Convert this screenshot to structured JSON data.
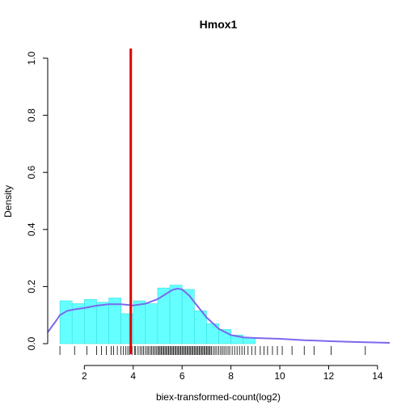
{
  "chart_data": {
    "type": "histogram",
    "title": "Hmox1",
    "xlabel": "biex-transformed-count(log2)",
    "ylabel": "Density",
    "xlim": [
      0.5,
      14.5
    ],
    "ylim": [
      0,
      1.0
    ],
    "x_ticks": [
      "2",
      "4",
      "6",
      "8",
      "10",
      "12",
      "14"
    ],
    "y_ticks": [
      "0.0",
      "0.2",
      "0.4",
      "0.6",
      "0.8",
      "1.0"
    ],
    "bin_width": 0.5,
    "bins_start": [
      1.0,
      1.5,
      2.0,
      2.5,
      3.0,
      3.5,
      4.0,
      4.5,
      5.0,
      5.5,
      6.0,
      6.5,
      7.0,
      7.5,
      8.0,
      8.5
    ],
    "bin_density": [
      0.15,
      0.14,
      0.155,
      0.145,
      0.16,
      0.105,
      0.15,
      0.14,
      0.195,
      0.205,
      0.19,
      0.115,
      0.07,
      0.05,
      0.03,
      0.02
    ],
    "density_curve": {
      "x": [
        0.5,
        0.8,
        1.0,
        1.3,
        1.6,
        2.0,
        2.5,
        3.0,
        3.5,
        4.0,
        4.5,
        5.0,
        5.3,
        5.6,
        5.8,
        6.0,
        6.3,
        6.6,
        7.0,
        7.5,
        8.0,
        8.5,
        9.0,
        10.0,
        11.0,
        12.0,
        13.0,
        14.0,
        14.5
      ],
      "y": [
        0.04,
        0.075,
        0.1,
        0.115,
        0.12,
        0.125,
        0.133,
        0.138,
        0.138,
        0.134,
        0.14,
        0.156,
        0.172,
        0.188,
        0.193,
        0.19,
        0.168,
        0.135,
        0.092,
        0.052,
        0.03,
        0.022,
        0.02,
        0.017,
        0.012,
        0.009,
        0.006,
        0.004,
        0.003
      ]
    },
    "vertical_line_x": 3.9,
    "rug": [
      1.0,
      1.6,
      2.1,
      2.5,
      2.7,
      2.9,
      3.1,
      3.2,
      3.35,
      3.5,
      3.6,
      3.7,
      3.78,
      3.85,
      3.95,
      4.05,
      4.1,
      4.2,
      4.28,
      4.35,
      4.42,
      4.5,
      4.57,
      4.63,
      4.7,
      4.76,
      4.82,
      4.88,
      4.94,
      5.0,
      5.05,
      5.1,
      5.15,
      5.2,
      5.25,
      5.3,
      5.35,
      5.4,
      5.45,
      5.5,
      5.55,
      5.6,
      5.65,
      5.7,
      5.75,
      5.8,
      5.85,
      5.9,
      5.95,
      6.0,
      6.05,
      6.1,
      6.15,
      6.2,
      6.25,
      6.3,
      6.35,
      6.4,
      6.45,
      6.5,
      6.55,
      6.6,
      6.65,
      6.7,
      6.75,
      6.8,
      6.85,
      6.9,
      6.95,
      7.0,
      7.05,
      7.1,
      7.15,
      7.2,
      7.28,
      7.35,
      7.42,
      7.5,
      7.58,
      7.65,
      7.72,
      7.8,
      7.88,
      7.95,
      8.05,
      8.15,
      8.25,
      8.35,
      8.45,
      8.55,
      8.7,
      8.85,
      9.0,
      9.2,
      9.35,
      9.5,
      9.7,
      9.9,
      10.1,
      10.5,
      11.0,
      11.4,
      12.1,
      13.5
    ],
    "colors": {
      "bars": "#66ffff",
      "bar_edge": "#33e0e0",
      "density_line": "#7b68ee",
      "vertical_line": "#e00000",
      "rug": "#000000",
      "axes": "#000000"
    }
  }
}
